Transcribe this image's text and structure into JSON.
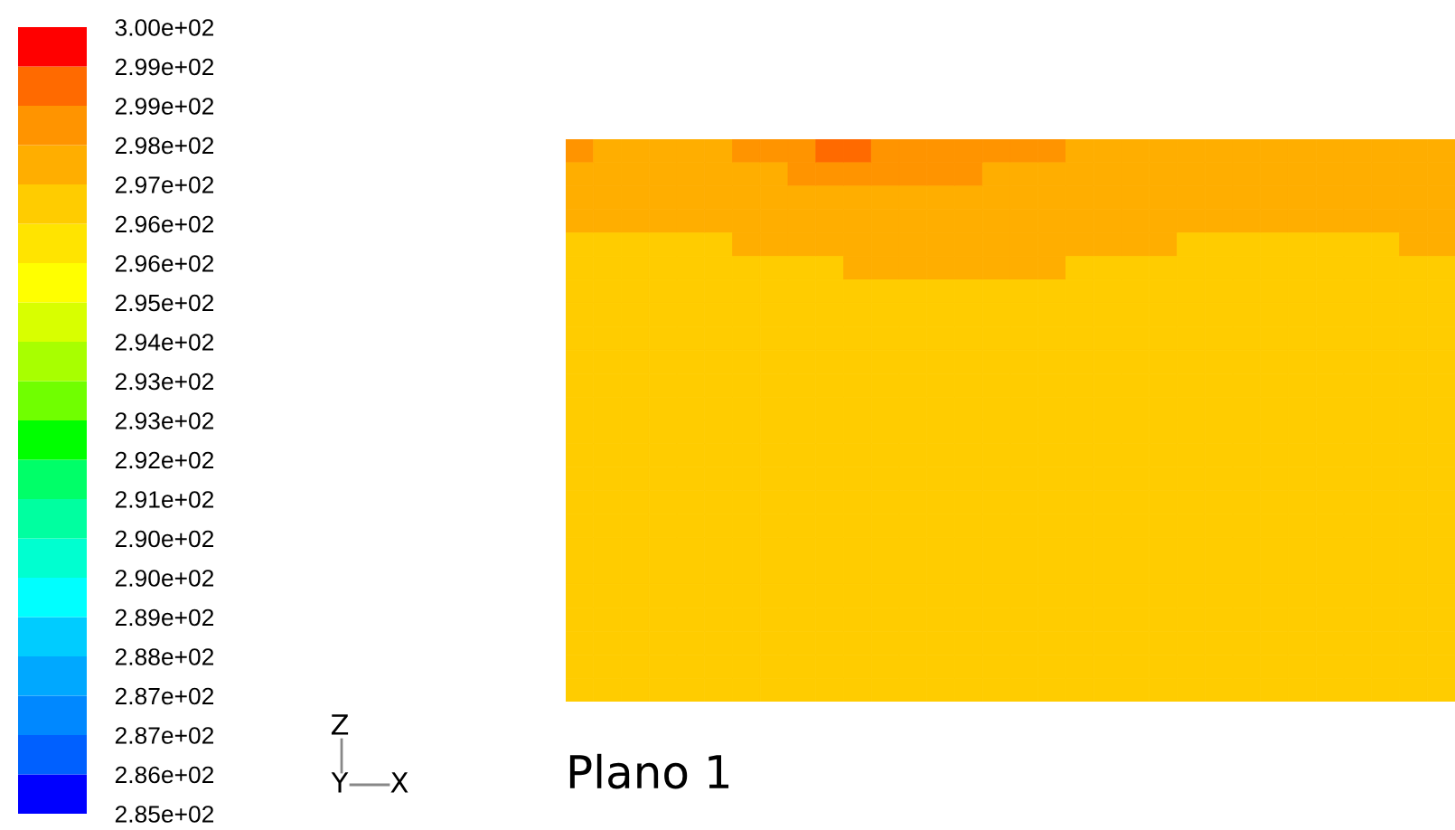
{
  "chart_data": {
    "type": "heatmap",
    "categories": [
      null,
      null,
      null,
      null,
      null,
      null,
      null,
      null,
      null,
      null,
      null,
      null,
      null,
      null,
      null,
      null,
      null,
      null,
      null,
      null,
      null,
      null,
      null,
      null,
      null,
      null,
      null,
      null,
      null,
      null,
      null,
      null
    ],
    "y_categories": [
      null,
      null,
      null,
      null,
      null,
      null,
      null,
      null,
      null,
      null,
      null,
      null,
      null,
      null,
      null,
      null,
      null,
      null,
      null,
      null,
      null,
      null,
      null,
      null
    ],
    "cells": [
      [
        298.1,
        297.4,
        297.4,
        297.4,
        297.4,
        297.4,
        298.1,
        298.1,
        298.1,
        298.9,
        298.9,
        298.1,
        298.1,
        298.1,
        298.1,
        298.1,
        298.1,
        298.1,
        297.4,
        297.4,
        297.4,
        297.4,
        297.4,
        297.4,
        297.4,
        297.4,
        297.4,
        297.4,
        297.4,
        297.4,
        297.4,
        297.4
      ],
      [
        297.4,
        297.4,
        297.4,
        297.4,
        297.4,
        297.4,
        297.4,
        297.4,
        298.1,
        298.1,
        298.1,
        298.1,
        298.1,
        298.1,
        298.1,
        297.4,
        297.4,
        297.4,
        297.4,
        297.4,
        297.4,
        297.4,
        297.4,
        297.4,
        297.4,
        297.4,
        297.4,
        297.4,
        297.4,
        297.4,
        297.4,
        297.4
      ],
      [
        297.4,
        297.4,
        297.4,
        297.4,
        297.4,
        297.4,
        297.4,
        297.4,
        297.4,
        297.4,
        297.4,
        297.4,
        297.4,
        297.4,
        297.4,
        297.4,
        297.4,
        297.4,
        297.4,
        297.4,
        297.4,
        297.4,
        297.4,
        297.4,
        297.4,
        297.4,
        297.4,
        297.4,
        297.4,
        297.4,
        297.4,
        297.4
      ],
      [
        297.4,
        297.4,
        297.4,
        297.4,
        297.4,
        297.4,
        297.4,
        297.4,
        297.4,
        297.4,
        297.4,
        297.4,
        297.4,
        297.4,
        297.4,
        297.4,
        297.4,
        297.4,
        297.4,
        297.4,
        297.4,
        297.4,
        297.4,
        297.4,
        297.4,
        297.4,
        297.4,
        297.4,
        297.4,
        297.4,
        297.4,
        297.4
      ],
      [
        296.6,
        296.6,
        296.6,
        296.6,
        296.6,
        296.6,
        297.4,
        297.4,
        297.4,
        297.4,
        297.4,
        297.4,
        297.4,
        297.4,
        297.4,
        297.4,
        297.4,
        297.4,
        297.4,
        297.4,
        297.4,
        297.4,
        296.6,
        296.6,
        296.6,
        296.6,
        296.6,
        296.6,
        296.6,
        296.6,
        297.4,
        297.4
      ],
      [
        296.6,
        296.6,
        296.6,
        296.6,
        296.6,
        296.6,
        296.6,
        296.6,
        296.6,
        296.6,
        297.4,
        297.4,
        297.4,
        297.4,
        297.4,
        297.4,
        297.4,
        297.4,
        296.6,
        296.6,
        296.6,
        296.6,
        296.6,
        296.6,
        296.6,
        296.6,
        296.6,
        296.6,
        296.6,
        296.6,
        296.6,
        296.6
      ],
      [
        296.6,
        296.6,
        296.6,
        296.6,
        296.6,
        296.6,
        296.6,
        296.6,
        296.6,
        296.6,
        296.6,
        296.6,
        296.6,
        296.6,
        296.6,
        296.6,
        296.6,
        296.6,
        296.6,
        296.6,
        296.6,
        296.6,
        296.6,
        296.6,
        296.6,
        296.6,
        296.6,
        296.6,
        296.6,
        296.6,
        296.6,
        296.6
      ],
      [
        296.6,
        296.6,
        296.6,
        296.6,
        296.6,
        296.6,
        296.6,
        296.6,
        296.6,
        296.6,
        296.6,
        296.6,
        296.6,
        296.6,
        296.6,
        296.6,
        296.6,
        296.6,
        296.6,
        296.6,
        296.6,
        296.6,
        296.6,
        296.6,
        296.6,
        296.6,
        296.6,
        296.6,
        296.6,
        296.6,
        296.6,
        296.6
      ],
      [
        296.6,
        296.6,
        296.6,
        296.6,
        296.6,
        296.6,
        296.6,
        296.6,
        296.6,
        296.6,
        296.6,
        296.6,
        296.6,
        296.6,
        296.6,
        296.6,
        296.6,
        296.6,
        296.6,
        296.6,
        296.6,
        296.6,
        296.6,
        296.6,
        296.6,
        296.6,
        296.6,
        296.6,
        296.6,
        296.6,
        296.6,
        296.6
      ],
      [
        296.6,
        296.6,
        296.6,
        296.6,
        296.6,
        296.6,
        296.6,
        296.6,
        296.6,
        296.6,
        296.6,
        296.6,
        296.6,
        296.6,
        296.6,
        296.6,
        296.6,
        296.6,
        296.6,
        296.6,
        296.6,
        296.6,
        296.6,
        296.6,
        296.6,
        296.6,
        296.6,
        296.6,
        296.6,
        296.6,
        296.6,
        296.6
      ],
      [
        296.6,
        296.6,
        296.6,
        296.6,
        296.6,
        296.6,
        296.6,
        296.6,
        296.6,
        296.6,
        296.6,
        296.6,
        296.6,
        296.6,
        296.6,
        296.6,
        296.6,
        296.6,
        296.6,
        296.6,
        296.6,
        296.6,
        296.6,
        296.6,
        296.6,
        296.6,
        296.6,
        296.6,
        296.6,
        296.6,
        296.6,
        296.6
      ],
      [
        296.6,
        296.6,
        296.6,
        296.6,
        296.6,
        296.6,
        296.6,
        296.6,
        296.6,
        296.6,
        296.6,
        296.6,
        296.6,
        296.6,
        296.6,
        296.6,
        296.6,
        296.6,
        296.6,
        296.6,
        296.6,
        296.6,
        296.6,
        296.6,
        296.6,
        296.6,
        296.6,
        296.6,
        296.6,
        296.6,
        296.6,
        296.6
      ],
      [
        296.6,
        296.6,
        296.6,
        296.6,
        296.6,
        296.6,
        296.6,
        296.6,
        296.6,
        296.6,
        296.6,
        296.6,
        296.6,
        296.6,
        296.6,
        296.6,
        296.6,
        296.6,
        296.6,
        296.6,
        296.6,
        296.6,
        296.6,
        296.6,
        296.6,
        296.6,
        296.6,
        296.6,
        296.6,
        296.6,
        296.6,
        296.6
      ],
      [
        296.6,
        296.6,
        296.6,
        296.6,
        296.6,
        296.6,
        296.6,
        296.6,
        296.6,
        296.6,
        296.6,
        296.6,
        296.6,
        296.6,
        296.6,
        296.6,
        296.6,
        296.6,
        296.6,
        296.6,
        296.6,
        296.6,
        296.6,
        296.6,
        296.6,
        296.6,
        296.6,
        296.6,
        296.6,
        296.6,
        296.6,
        296.6
      ],
      [
        296.6,
        296.6,
        296.6,
        296.6,
        296.6,
        296.6,
        296.6,
        296.6,
        296.6,
        296.6,
        296.6,
        296.6,
        296.6,
        296.6,
        296.6,
        296.6,
        296.6,
        296.6,
        296.6,
        296.6,
        296.6,
        296.6,
        296.6,
        296.6,
        296.6,
        296.6,
        296.6,
        296.6,
        296.6,
        296.6,
        296.6,
        296.6
      ],
      [
        296.6,
        296.6,
        296.6,
        296.6,
        296.6,
        296.6,
        296.6,
        296.6,
        296.6,
        296.6,
        296.6,
        296.6,
        296.6,
        296.6,
        296.6,
        296.6,
        296.6,
        296.6,
        296.6,
        296.6,
        296.6,
        296.6,
        296.6,
        296.6,
        296.6,
        296.6,
        296.6,
        296.6,
        296.6,
        296.6,
        296.6,
        296.6
      ],
      [
        296.6,
        296.6,
        296.6,
        296.6,
        296.6,
        296.6,
        296.6,
        296.6,
        296.6,
        296.6,
        296.6,
        296.6,
        296.6,
        296.6,
        296.6,
        296.6,
        296.6,
        296.6,
        296.6,
        296.6,
        296.6,
        296.6,
        296.6,
        296.6,
        296.6,
        296.6,
        296.6,
        296.6,
        296.6,
        296.6,
        296.6,
        296.6
      ],
      [
        296.6,
        296.6,
        296.6,
        296.6,
        296.6,
        296.6,
        296.6,
        296.6,
        296.6,
        296.6,
        296.6,
        296.6,
        296.6,
        296.6,
        296.6,
        296.6,
        296.6,
        296.6,
        296.6,
        296.6,
        296.6,
        296.6,
        296.6,
        296.6,
        296.6,
        296.6,
        296.6,
        296.6,
        296.6,
        296.6,
        296.6,
        296.6
      ],
      [
        296.6,
        296.6,
        296.6,
        296.6,
        296.6,
        296.6,
        296.6,
        296.6,
        296.6,
        296.6,
        296.6,
        296.6,
        296.6,
        296.6,
        296.6,
        296.6,
        296.6,
        296.6,
        296.6,
        296.6,
        296.6,
        296.6,
        296.6,
        296.6,
        296.6,
        296.6,
        296.6,
        296.6,
        296.6,
        296.6,
        296.6,
        296.6
      ],
      [
        296.6,
        296.6,
        296.6,
        296.6,
        296.6,
        296.6,
        296.6,
        296.6,
        296.6,
        296.6,
        296.6,
        296.6,
        296.6,
        296.6,
        296.6,
        296.6,
        296.6,
        296.6,
        296.6,
        296.6,
        296.6,
        296.6,
        296.6,
        296.6,
        296.6,
        296.6,
        296.6,
        296.6,
        296.6,
        296.6,
        296.6,
        296.6
      ],
      [
        296.6,
        296.6,
        296.6,
        296.6,
        296.6,
        296.6,
        296.6,
        296.6,
        296.6,
        296.6,
        296.6,
        296.6,
        296.6,
        296.6,
        296.6,
        296.6,
        296.6,
        296.6,
        296.6,
        296.6,
        296.6,
        296.6,
        296.6,
        296.6,
        296.6,
        296.6,
        296.6,
        296.6,
        296.6,
        296.6,
        296.6,
        296.6
      ],
      [
        296.6,
        296.6,
        296.6,
        296.6,
        296.6,
        296.6,
        296.6,
        296.6,
        296.6,
        296.6,
        296.6,
        296.6,
        296.6,
        296.6,
        296.6,
        296.6,
        296.6,
        296.6,
        296.6,
        296.6,
        296.6,
        296.6,
        296.6,
        296.6,
        296.6,
        296.6,
        296.6,
        296.6,
        296.6,
        296.6,
        296.6,
        296.6
      ],
      [
        296.6,
        296.6,
        296.6,
        296.6,
        296.6,
        296.6,
        296.6,
        296.6,
        296.6,
        296.6,
        296.6,
        296.6,
        296.6,
        296.6,
        296.6,
        296.6,
        296.6,
        296.6,
        296.6,
        296.6,
        296.6,
        296.6,
        296.6,
        296.6,
        296.6,
        296.6,
        296.6,
        296.6,
        296.6,
        296.6,
        296.6,
        296.6
      ],
      [
        296.6,
        296.6,
        296.6,
        296.6,
        296.6,
        296.6,
        296.6,
        296.6,
        296.6,
        296.6,
        296.6,
        296.6,
        296.6,
        296.6,
        296.6,
        296.6,
        296.6,
        296.6,
        296.6,
        296.6,
        296.6,
        296.6,
        296.6,
        296.6,
        296.6,
        296.6,
        296.6,
        296.6,
        296.6,
        296.6,
        296.6,
        296.6
      ]
    ],
    "clim": [
      285,
      300
    ],
    "cticks": [
      {
        "value": 300,
        "label": "3.00e+02"
      },
      {
        "value": 299.25,
        "label": "2.99e+02"
      },
      {
        "value": 298.5,
        "label": "2.99e+02"
      },
      {
        "value": 297.75,
        "label": "2.98e+02"
      },
      {
        "value": 297,
        "label": "2.97e+02"
      },
      {
        "value": 296.25,
        "label": "2.96e+02"
      },
      {
        "value": 295.5,
        "label": "2.96e+02"
      },
      {
        "value": 294.75,
        "label": "2.95e+02"
      },
      {
        "value": 294,
        "label": "2.94e+02"
      },
      {
        "value": 293.25,
        "label": "2.93e+02"
      },
      {
        "value": 292.5,
        "label": "2.93e+02"
      },
      {
        "value": 291.75,
        "label": "2.92e+02"
      },
      {
        "value": 291,
        "label": "2.91e+02"
      },
      {
        "value": 290.25,
        "label": "2.90e+02"
      },
      {
        "value": 289.5,
        "label": "2.90e+02"
      },
      {
        "value": 288.75,
        "label": "2.89e+02"
      },
      {
        "value": 288,
        "label": "2.88e+02"
      },
      {
        "value": 287.25,
        "label": "2.87e+02"
      },
      {
        "value": 286.5,
        "label": "2.87e+02"
      },
      {
        "value": 285.75,
        "label": "2.86e+02"
      },
      {
        "value": 285,
        "label": "2.85e+02"
      }
    ],
    "tick_labels": false,
    "annotations": [
      "Plano 1",
      "Z",
      "Y",
      "X"
    ]
  }
}
